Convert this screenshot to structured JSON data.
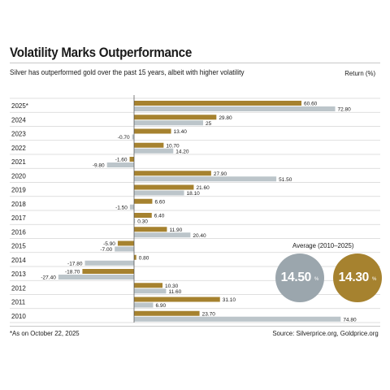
{
  "colors": {
    "gold": "#a6822f",
    "silver": "#bcc5ca",
    "grid": "#d4d4d4",
    "axis": "#4a4a4a"
  },
  "chart_data": {
    "type": "bar",
    "orientation": "horizontal",
    "title": "Volatility Marks Outperformance",
    "subtitle": "Silver has outperformed gold over the past 15 years, albeit with higher volatility",
    "unit_label": "Return (%)",
    "categories": [
      "2025*",
      "2024",
      "2023",
      "2022",
      "2021",
      "2020",
      "2019",
      "2018",
      "2017",
      "2016",
      "2015",
      "2014",
      "2013",
      "2012",
      "2011",
      "2010"
    ],
    "series": [
      {
        "color": "#a6822f",
        "values": [
          60.6,
          29.8,
          13.4,
          10.7,
          -1.6,
          27.9,
          21.6,
          6.6,
          6.4,
          11.9,
          -5.9,
          0.8,
          -18.7,
          10.3,
          31.1,
          23.7
        ]
      },
      {
        "color": "#bcc5ca",
        "values": [
          72.8,
          25,
          -0.7,
          14.2,
          -9.8,
          51.5,
          18.1,
          -1.5,
          0.3,
          20.4,
          -7.0,
          -17.8,
          -27.4,
          11.6,
          6.9,
          74.8
        ]
      }
    ],
    "value_labels": [
      [
        "60.60",
        "72.80"
      ],
      [
        "29.80",
        "25"
      ],
      [
        "13.40",
        "-0.70"
      ],
      [
        "10.70",
        "14.20"
      ],
      [
        "-1.60",
        "-9.80"
      ],
      [
        "27.90",
        "51.50"
      ],
      [
        "21.60",
        "18.10"
      ],
      [
        "6.60",
        "-1.50"
      ],
      [
        "6.40",
        "0.30"
      ],
      [
        "11.90",
        "20.40"
      ],
      [
        "-5.90",
        "-7.00"
      ],
      [
        "0.80",
        "-17.80"
      ],
      [
        "-18.70",
        "-27.40"
      ],
      [
        "10.30",
        "11.60"
      ],
      [
        "31.10",
        "6.90"
      ],
      [
        "23.70",
        "74.80"
      ]
    ],
    "xlim": [
      -28,
      77
    ],
    "grid": "horizontal row separators",
    "average": {
      "title": "Average (2010–2025)",
      "silver": "14.50",
      "gold": "14.30",
      "unit": "%"
    }
  },
  "footnote": "*As on October 22, 2025",
  "source": "Source: Silverprice.org, Goldprice.org"
}
